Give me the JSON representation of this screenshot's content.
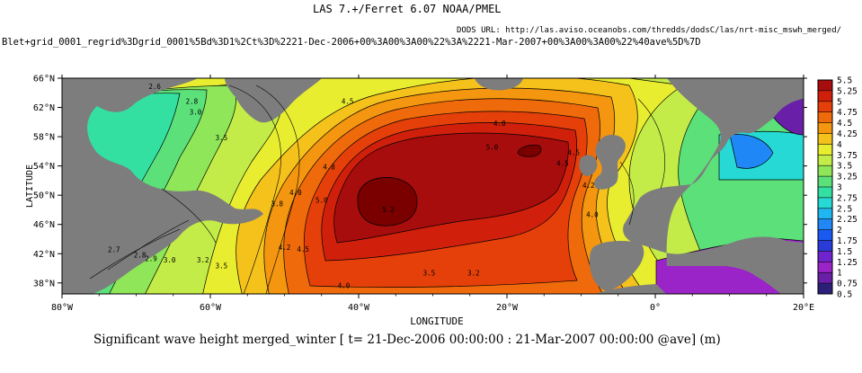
{
  "header": {
    "title": "LAS 7.+/Ferret 6.07      NOAA/PMEL",
    "dods_url": "DODS URL: http://las.aviso.oceanobs.com/thredds/dodsC/las/nrt-misc_mswh_merged/",
    "expression": "Blet+grid_0001_regrid%3Dgrid_0001%5Bd%3D1%2Ct%3D%2221-Dec-2006+00%3A00%3A00%22%3A%2221-Mar-2007+00%3A00%3A00%22%40ave%5D%7D"
  },
  "caption": "Significant wave height merged_winter [ t= 21-Dec-2006 00:00:00 : 21-Mar-2007 00:00:00 @ave] (m)",
  "chart_data": {
    "type": "heatmap",
    "title": "Significant wave height merged_winter [ t= 21-Dec-2006 00:00:00 : 21-Mar-2007 00:00:00 @ave] (m)",
    "xlabel": "LONGITUDE",
    "ylabel": "LATITUDE",
    "xlim": [
      -80,
      20
    ],
    "ylim": [
      36.5,
      66
    ],
    "x_ticks": [
      -80,
      -60,
      -40,
      -20,
      0,
      20
    ],
    "x_tick_labels": [
      "80°W",
      "60°W",
      "40°W",
      "20°W",
      "0°",
      "20°E"
    ],
    "y_ticks": [
      38,
      42,
      46,
      50,
      54,
      58,
      62,
      66
    ],
    "y_tick_labels": [
      "38°N",
      "42°N",
      "46°N",
      "50°N",
      "54°N",
      "58°N",
      "62°N",
      "66°N"
    ],
    "colorbar": {
      "levels": [
        "0.5",
        "0.75",
        "1",
        "1.25",
        "1.5",
        "1.75",
        "2",
        "2.25",
        "2.5",
        "2.75",
        "3",
        "3.25",
        "3.5",
        "3.75",
        "4",
        "4.25",
        "4.5",
        "4.75",
        "5",
        "5.25",
        "5.5"
      ],
      "colors": [
        "#2c1f7a",
        "#6a1fa8",
        "#9a24c8",
        "#7024d0",
        "#2a3cd8",
        "#1a5af0",
        "#1f88f6",
        "#20b6f2",
        "#26d9d4",
        "#33e0a2",
        "#5ce07a",
        "#8ee658",
        "#c3ec48",
        "#e9ed2f",
        "#f5c21c",
        "#f4960f",
        "#ef6a0a",
        "#e6400a",
        "#d0200c",
        "#a80d0d"
      ]
    },
    "contour_labels": [
      {
        "text": "2.6",
        "lon": -67.5,
        "lat": 64.5
      },
      {
        "text": "2.8",
        "lon": -62.5,
        "lat": 62.5
      },
      {
        "text": "3.0",
        "lon": -62,
        "lat": 61
      },
      {
        "text": "3.5",
        "lon": -58.5,
        "lat": 57.5
      },
      {
        "text": "4.5",
        "lon": -41.5,
        "lat": 62.5
      },
      {
        "text": "4.8",
        "lon": -21,
        "lat": 59.5
      },
      {
        "text": "5.0",
        "lon": -22,
        "lat": 56.2
      },
      {
        "text": "4.5",
        "lon": -11,
        "lat": 55.5
      },
      {
        "text": "4.8",
        "lon": -44,
        "lat": 53.5
      },
      {
        "text": "5.0",
        "lon": -45,
        "lat": 49
      },
      {
        "text": "5.2",
        "lon": -36,
        "lat": 47.7
      },
      {
        "text": "4.5",
        "lon": -12.5,
        "lat": 54
      },
      {
        "text": "4.2",
        "lon": -9,
        "lat": 51
      },
      {
        "text": "4.0",
        "lon": -48.5,
        "lat": 50
      },
      {
        "text": "3.8",
        "lon": -51,
        "lat": 48.5
      },
      {
        "text": "4.0",
        "lon": -8.5,
        "lat": 47
      },
      {
        "text": "4.2",
        "lon": -50,
        "lat": 42.5
      },
      {
        "text": "4.5",
        "lon": -47.5,
        "lat": 42.3
      },
      {
        "text": "2.7",
        "lon": -73,
        "lat": 42.2
      },
      {
        "text": "2.8",
        "lon": -69.5,
        "lat": 41.5
      },
      {
        "text": "2.9",
        "lon": -68,
        "lat": 41
      },
      {
        "text": "3.0",
        "lon": -65.5,
        "lat": 40.8
      },
      {
        "text": "3.2",
        "lon": -61,
        "lat": 40.8
      },
      {
        "text": "3.5",
        "lon": -58.5,
        "lat": 40
      },
      {
        "text": "3.5",
        "lon": -30.5,
        "lat": 39
      },
      {
        "text": "3.2",
        "lon": -24.5,
        "lat": 39
      },
      {
        "text": "4.0",
        "lon": -42,
        "lat": 37.3
      }
    ]
  }
}
